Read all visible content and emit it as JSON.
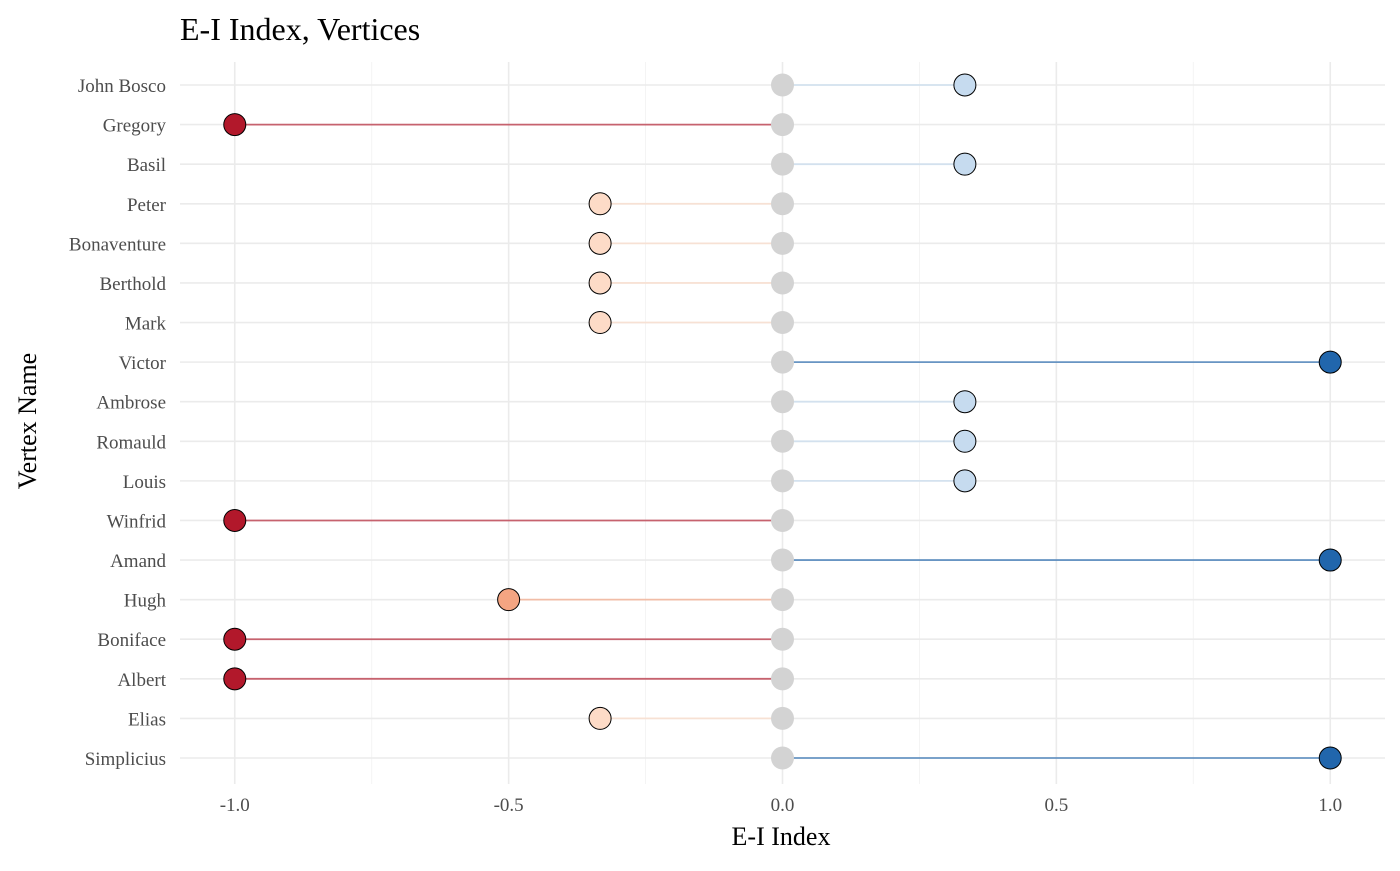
{
  "chart_data": {
    "type": "lollipop",
    "title": "E-I Index, Vertices",
    "xlabel": "E-I Index",
    "ylabel": "Vertex Name",
    "xlim": [
      -1.1,
      1.1
    ],
    "x_ticks": [
      -1.0,
      -0.5,
      0.0,
      0.5,
      1.0
    ],
    "x_tick_labels": [
      "-1.0",
      "-0.5",
      "0.0",
      "0.5",
      "1.0"
    ],
    "baseline": 0.0,
    "grid": true,
    "legend": "none",
    "colors": {
      "-1.0": "#b2182b",
      "-0.5": "#f4a582",
      "-0.333": "#fddbc7",
      "0.333": "#c6dbef",
      "1.0": "#2166ac",
      "baseline_point": "#d3d3d3"
    },
    "categories": [
      "John Bosco",
      "Gregory",
      "Basil",
      "Peter",
      "Bonaventure",
      "Berthold",
      "Mark",
      "Victor",
      "Ambrose",
      "Romauld",
      "Louis",
      "Winfrid",
      "Amand",
      "Hugh",
      "Boniface",
      "Albert",
      "Elias",
      "Simplicius"
    ],
    "values": [
      0.333,
      -1.0,
      0.333,
      -0.333,
      -0.333,
      -0.333,
      -0.333,
      1.0,
      0.333,
      0.333,
      0.333,
      -1.0,
      1.0,
      -0.5,
      -1.0,
      -1.0,
      -0.333,
      1.0
    ]
  }
}
